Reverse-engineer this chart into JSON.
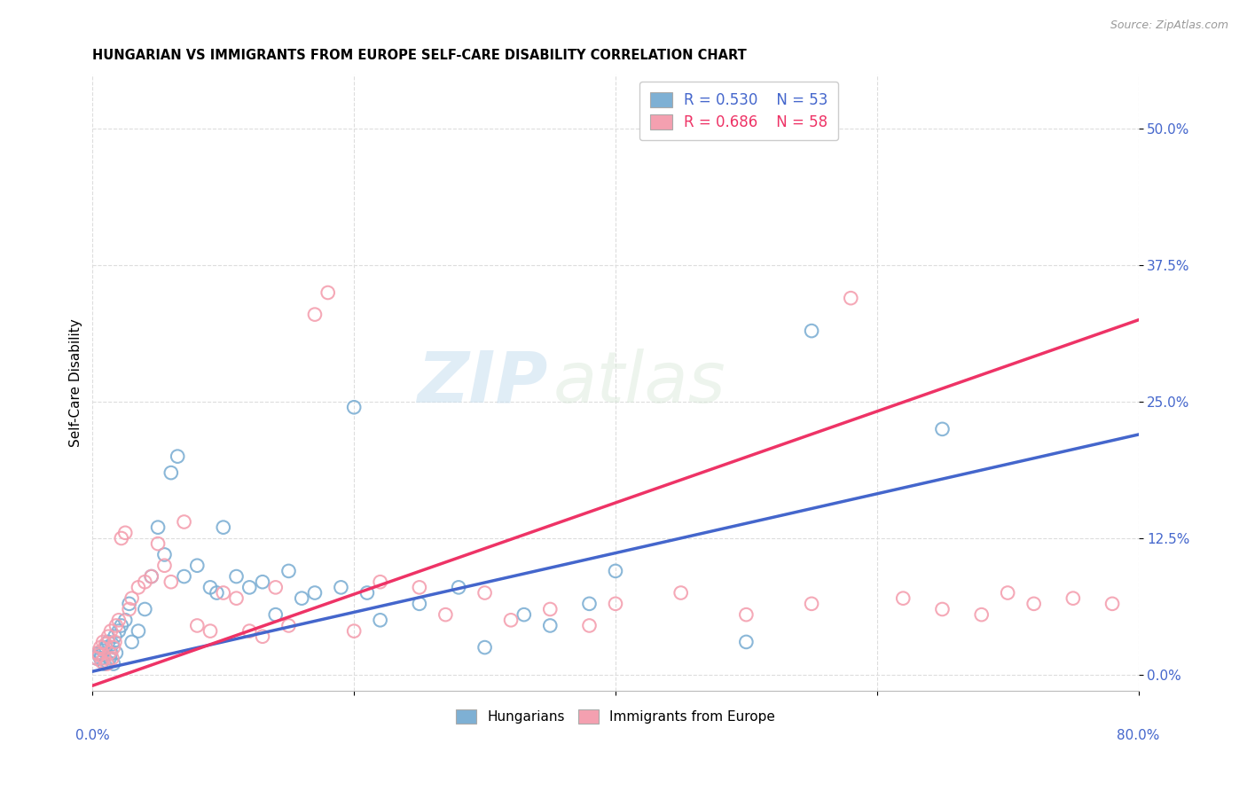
{
  "title": "HUNGARIAN VS IMMIGRANTS FROM EUROPE SELF-CARE DISABILITY CORRELATION CHART",
  "source": "Source: ZipAtlas.com",
  "ylabel": "Self-Care Disability",
  "ytick_labels": [
    "0.0%",
    "12.5%",
    "25.0%",
    "37.5%",
    "50.0%"
  ],
  "ytick_values": [
    0.0,
    12.5,
    25.0,
    37.5,
    50.0
  ],
  "xlim": [
    0.0,
    80.0
  ],
  "ylim": [
    -1.5,
    55.0
  ],
  "legend_blue_r": "R = 0.530",
  "legend_blue_n": "N = 53",
  "legend_pink_r": "R = 0.686",
  "legend_pink_n": "N = 58",
  "blue_color": "#7EB0D4",
  "pink_color": "#F4A0B0",
  "blue_line_color": "#4466CC",
  "pink_line_color": "#EE3366",
  "watermark_zip": "ZIP",
  "watermark_atlas": "atlas",
  "blue_points_x": [
    0.3,
    0.5,
    0.6,
    0.7,
    0.8,
    0.9,
    1.0,
    1.1,
    1.2,
    1.3,
    1.4,
    1.5,
    1.6,
    1.7,
    1.8,
    2.0,
    2.2,
    2.5,
    2.8,
    3.0,
    3.5,
    4.0,
    4.5,
    5.0,
    5.5,
    6.0,
    6.5,
    7.0,
    8.0,
    9.0,
    9.5,
    10.0,
    11.0,
    12.0,
    13.0,
    14.0,
    15.0,
    16.0,
    17.0,
    19.0,
    20.0,
    21.0,
    22.0,
    25.0,
    28.0,
    30.0,
    33.0,
    35.0,
    38.0,
    40.0,
    50.0,
    55.0,
    65.0
  ],
  "blue_points_y": [
    1.5,
    2.0,
    1.5,
    1.8,
    2.2,
    1.0,
    2.5,
    1.2,
    3.0,
    1.5,
    2.0,
    2.8,
    1.0,
    3.5,
    2.0,
    4.0,
    4.5,
    5.0,
    6.5,
    3.0,
    4.0,
    6.0,
    9.0,
    13.5,
    11.0,
    18.5,
    20.0,
    9.0,
    10.0,
    8.0,
    7.5,
    13.5,
    9.0,
    8.0,
    8.5,
    5.5,
    9.5,
    7.0,
    7.5,
    8.0,
    24.5,
    7.5,
    5.0,
    6.5,
    8.0,
    2.5,
    5.5,
    4.5,
    6.5,
    9.5,
    3.0,
    31.5,
    22.5
  ],
  "pink_points_x": [
    0.3,
    0.4,
    0.5,
    0.6,
    0.7,
    0.8,
    0.9,
    1.0,
    1.1,
    1.2,
    1.3,
    1.4,
    1.5,
    1.6,
    1.7,
    1.8,
    2.0,
    2.2,
    2.5,
    2.8,
    3.0,
    3.5,
    4.0,
    4.5,
    5.0,
    5.5,
    6.0,
    7.0,
    8.0,
    9.0,
    10.0,
    11.0,
    12.0,
    13.0,
    14.0,
    15.0,
    17.0,
    18.0,
    20.0,
    22.0,
    25.0,
    27.0,
    30.0,
    32.0,
    35.0,
    38.0,
    40.0,
    45.0,
    50.0,
    55.0,
    58.0,
    62.0,
    65.0,
    68.0,
    70.0,
    72.0,
    75.0,
    78.0
  ],
  "pink_points_y": [
    1.5,
    2.0,
    1.8,
    2.5,
    1.2,
    3.0,
    1.5,
    2.8,
    1.0,
    3.5,
    2.0,
    4.0,
    1.5,
    2.5,
    3.0,
    4.5,
    5.0,
    12.5,
    13.0,
    6.0,
    7.0,
    8.0,
    8.5,
    9.0,
    12.0,
    10.0,
    8.5,
    14.0,
    4.5,
    4.0,
    7.5,
    7.0,
    4.0,
    3.5,
    8.0,
    4.5,
    33.0,
    35.0,
    4.0,
    8.5,
    8.0,
    5.5,
    7.5,
    5.0,
    6.0,
    4.5,
    6.5,
    7.5,
    5.5,
    6.5,
    34.5,
    7.0,
    6.0,
    5.5,
    7.5,
    6.5,
    7.0,
    6.5
  ],
  "blue_line_y_start": 0.3,
  "blue_line_y_end": 22.0,
  "pink_line_y_start": -1.0,
  "pink_line_y_end": 32.5,
  "grid_color": "#dddddd",
  "spine_color": "#bbbbbb"
}
